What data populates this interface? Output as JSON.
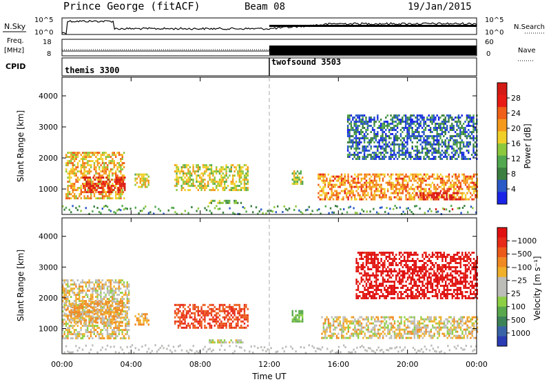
{
  "header": {
    "station": "Prince George (fitACF)",
    "beam": "Beam 08",
    "date": "19/Jan/2015"
  },
  "left_labels": {
    "nsky": "N.Sky",
    "freq_line1": "Freq.",
    "freq_line2": "[MHz]",
    "cpid": "CPID"
  },
  "right_labels": {
    "nsearch": "N.Search",
    "nave": "Nave"
  },
  "nsky_axis": {
    "ticks_left": [
      "10^5",
      "10^0"
    ],
    "ticks_right": [
      "10^5",
      "10^0"
    ]
  },
  "freq_axis": {
    "ticks_left": [
      "18",
      "8"
    ],
    "ticks_right": [
      "60",
      "0"
    ]
  },
  "cpid": {
    "first": "themis 3300",
    "second": "twofsound 3503",
    "switch_hour": 12
  },
  "panels": {
    "power_ylabel": "Slant Range [km]",
    "velocity_ylabel": "Slant Range [km]",
    "y_ticks": [
      "1000",
      "2000",
      "3000",
      "4000"
    ],
    "x_ticks": [
      "00:00",
      "04:00",
      "08:00",
      "12:00",
      "16:00",
      "20:00",
      "00:00"
    ],
    "xlabel": "Time UT"
  },
  "power_colorbar": {
    "title": "Power [dB]",
    "labels": [
      "4",
      "8",
      "12",
      "16",
      "20",
      "24",
      "28"
    ],
    "colors": [
      "#1a24e8",
      "#2a59c8",
      "#3b8040",
      "#52a84e",
      "#8cc83c",
      "#f0d028",
      "#f59a1c",
      "#f06018",
      "#e81c14",
      "#d41a14"
    ]
  },
  "velocity_colorbar": {
    "title": "Velocity [m s⁻¹]",
    "labels": [
      "1000",
      "500",
      "100",
      "25",
      "−25",
      "−100",
      "−500",
      "−1000"
    ],
    "colors": [
      "#2a3cb4",
      "#3a64a8",
      "#3c8458",
      "#5aa84c",
      "#8ed044",
      "#bcbcb8",
      "#bcbcb8",
      "#f0b02a",
      "#f08a22",
      "#ec5a1a",
      "#e82a18",
      "#e01010"
    ]
  },
  "chart_data": {
    "type": "heatmap",
    "title": "Prince George (fitACF)",
    "subtitle": "Beam 08",
    "xlabel": "Time UT",
    "ylabel": "Slant Range [km]",
    "xlim_hours": [
      0,
      24
    ],
    "ylim_km": [
      180,
      4600
    ],
    "power_range_db": [
      0,
      30
    ],
    "velocity_range_ms": [
      -1000,
      1000
    ],
    "power_regions": [
      {
        "t": [
          0.2,
          3.6
        ],
        "r": [
          700,
          2200
        ],
        "db": 18
      },
      {
        "t": [
          1.2,
          3.6
        ],
        "r": [
          900,
          1400
        ],
        "db": 26
      },
      {
        "t": [
          4.2,
          5.0
        ],
        "r": [
          1100,
          1500
        ],
        "db": 16
      },
      {
        "t": [
          6.5,
          10.8
        ],
        "r": [
          1000,
          1800
        ],
        "db": 15
      },
      {
        "t": [
          8.5,
          10.5
        ],
        "r": [
          550,
          650
        ],
        "db": 12
      },
      {
        "t": [
          13.3,
          13.9
        ],
        "r": [
          1200,
          1600
        ],
        "db": 14
      },
      {
        "t": [
          14.8,
          24.0
        ],
        "r": [
          700,
          1500
        ],
        "db": 20
      },
      {
        "t": [
          20.5,
          23.0
        ],
        "r": [
          700,
          900
        ],
        "db": 28
      },
      {
        "t": [
          21.6,
          22.6
        ],
        "r": [
          340,
          380
        ],
        "db": 30
      },
      {
        "t": [
          16.5,
          24.0
        ],
        "r": [
          2000,
          3400
        ],
        "db": 6
      }
    ],
    "velocity_regions": [
      {
        "t": [
          0.0,
          3.9
        ],
        "r": [
          700,
          2600
        ],
        "v": 0
      },
      {
        "t": [
          0.2,
          3.5
        ],
        "r": [
          1200,
          1900
        ],
        "v": -100
      },
      {
        "t": [
          4.2,
          5.0
        ],
        "r": [
          1100,
          1500
        ],
        "v": -100
      },
      {
        "t": [
          6.5,
          10.8
        ],
        "r": [
          1000,
          1800
        ],
        "v": -500
      },
      {
        "t": [
          8.5,
          10.5
        ],
        "r": [
          550,
          650
        ],
        "v": 100
      },
      {
        "t": [
          13.3,
          13.9
        ],
        "r": [
          1200,
          1600
        ],
        "v": 300
      },
      {
        "t": [
          15.0,
          24.0
        ],
        "r": [
          700,
          1400
        ],
        "v": 0
      },
      {
        "t": [
          17.0,
          24.0
        ],
        "r": [
          2000,
          3500
        ],
        "v": -800
      }
    ]
  }
}
